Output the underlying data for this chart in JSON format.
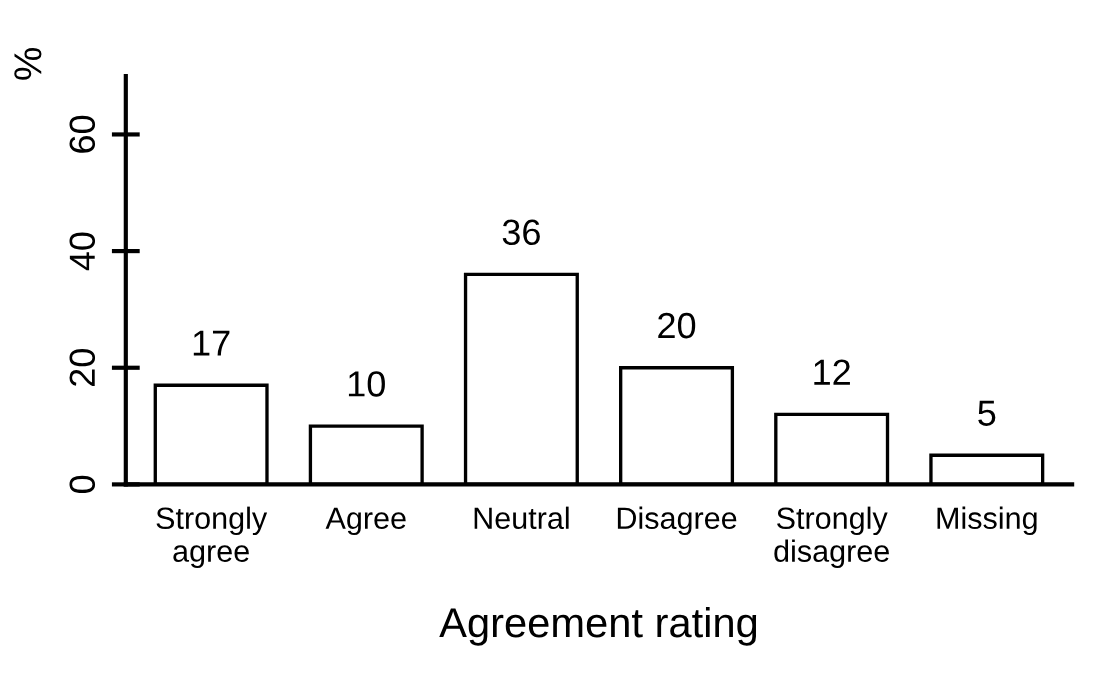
{
  "chart_data": {
    "type": "bar",
    "xlabel": "Agreement rating",
    "ylabel": "%",
    "categories": [
      "Strongly\nagree",
      "Agree",
      "Neutral",
      "Disagree",
      "Strongly\ndisagree",
      "Missing"
    ],
    "values": [
      17,
      10,
      36,
      20,
      12,
      5
    ],
    "color": "#ffffff",
    "ylim": [
      0,
      70
    ],
    "yticks": [
      0,
      20,
      40,
      60
    ],
    "data_labels": true,
    "grid": false
  }
}
